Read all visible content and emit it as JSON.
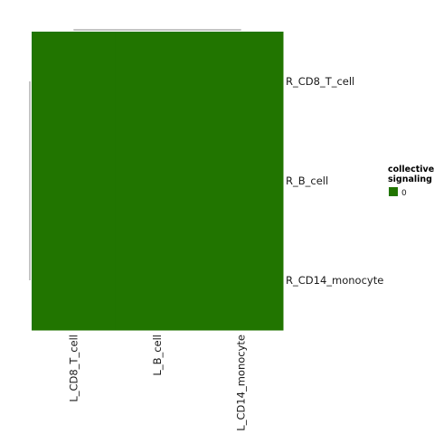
{
  "chart_data": {
    "type": "heatmap",
    "x_categories": [
      "L_CD8_T_cell",
      "L_B_cell",
      "L_CD14_monocyte"
    ],
    "y_categories": [
      "R_CD8_T_cell",
      "R_B_cell",
      "R_CD14_monocyte"
    ],
    "values": [
      [
        0,
        0,
        0
      ],
      [
        0,
        0,
        0
      ],
      [
        0,
        0,
        0
      ]
    ],
    "cell_color": "#217500",
    "dendrogram_color": "#888888",
    "legend": {
      "title_lines": [
        "collective",
        "signaling"
      ],
      "entries": [
        {
          "label": "0",
          "color": "#217500"
        }
      ],
      "placement": "right"
    }
  }
}
